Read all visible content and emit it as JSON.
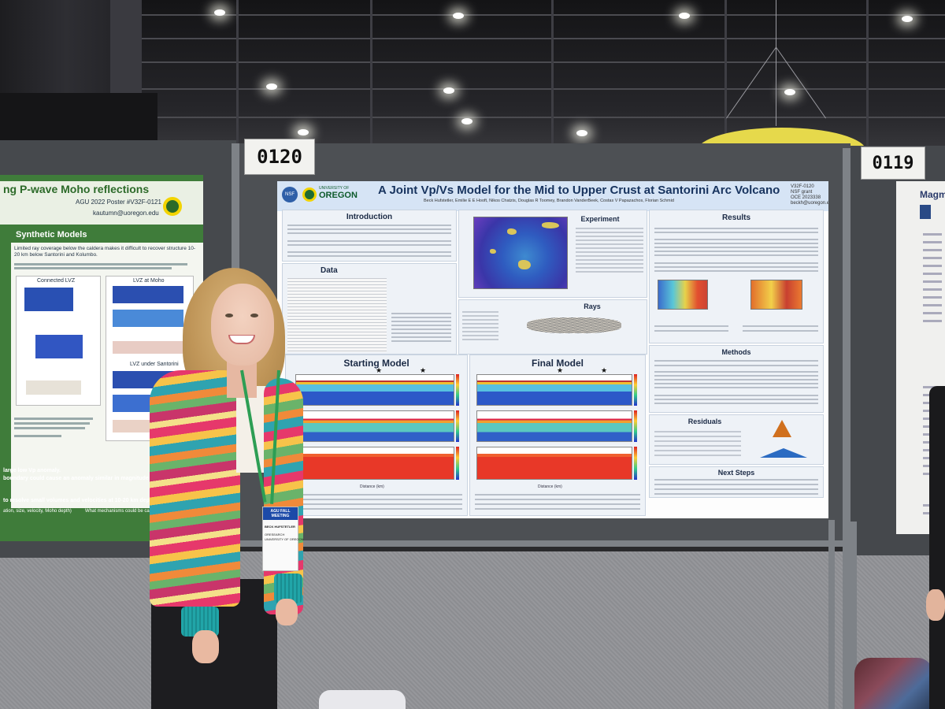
{
  "booth_numbers": {
    "main": "0120",
    "right": "0119"
  },
  "left_poster": {
    "title": "ng P-wave Moho reflections",
    "subtitle": "AGU 2022 Poster #V32F-0121",
    "email": "kautumn@uoregon.edu",
    "section_header": "Synthetic Models",
    "bullet_1": "Limited ray coverage below the caldera makes it difficult to recover structure 10-20 km below Santorini and Kolumbo.",
    "fig_labels": {
      "connected": "Connected LVZ",
      "moho": "LVZ at Moho",
      "santorini": "LVZ under Santorini"
    },
    "bottom_line_1": "large low Vp anomaly.",
    "bottom_line_2": "boundary could cause an anomaly similar in magnitude and",
    "bottom_line_3": "to resolve small volumes and velocities at 10-20 km depth under",
    "bottom_line_4": "ation, size, velocity, Moho depth)",
    "bottom_line_5": "What mechanisms could be cause"
  },
  "main_poster": {
    "title": "A Joint Vp/Vs Model for the Mid to Upper Crust at Santorini Arc Volcano",
    "authors": "Beck Hufstetler, Emilie E E Hooft, Nikos Chatzis, Douglas R Toomey, Brandon VanderBeek, Costas V Papazachos, Florian Schmid",
    "logo_nsf": "NSF",
    "logo_university": "UNIVERSITY OF",
    "logo_oregon": "OREGON",
    "poster_id": [
      "V32F-0120",
      "NSF grant",
      "OCE 2023338",
      "beckh@uoregon.edu"
    ],
    "sections": {
      "introduction": "Introduction",
      "experiment": "Experiment",
      "data": "Data",
      "rays": "Rays",
      "results": "Results",
      "methods": "Methods",
      "residuals": "Residuals",
      "next_steps": "Next Steps",
      "starting_model": "Starting Model",
      "final_model": "Final Model"
    },
    "axis_label": "Distance (km)"
  },
  "right_poster": {
    "title": "Magm"
  },
  "attendee_badge": {
    "header": "AGU FALL MEETING",
    "name": "BECK HUFSTETLER",
    "affil_1": "ORESEARCH",
    "affil_2": "UNIVERSITY OF OREGON"
  }
}
